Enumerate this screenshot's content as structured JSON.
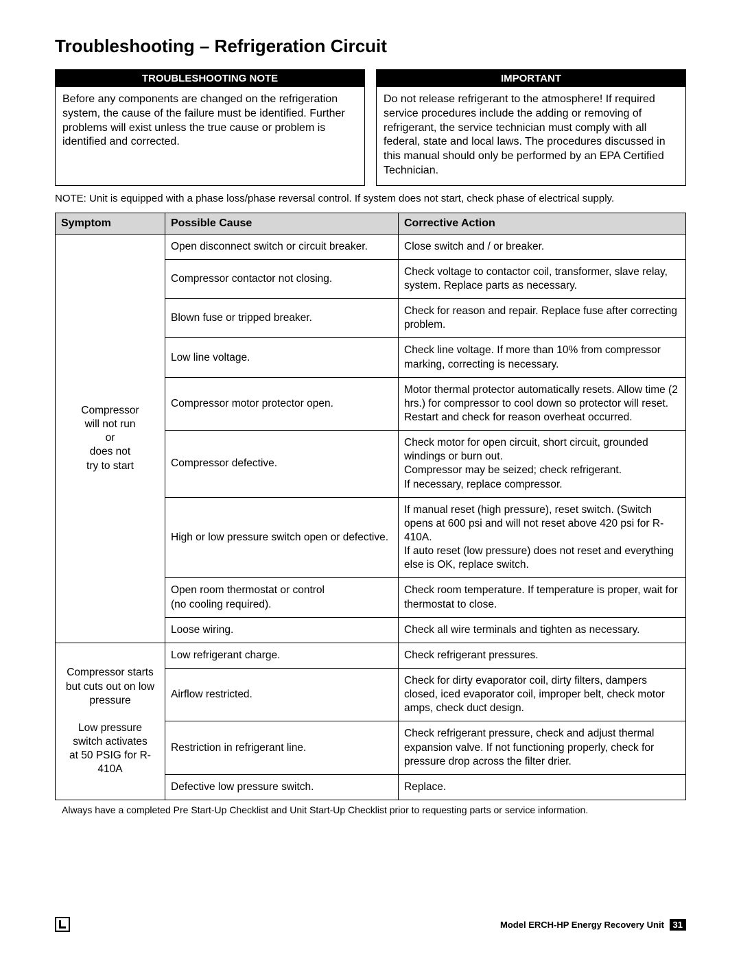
{
  "title": "Troubleshooting – Refrigeration Circuit",
  "callouts": {
    "left": {
      "header": "TROUBLESHOOTING NOTE",
      "body": "Before any components are changed on the refrigeration system, the cause of the failure must be identified. Further problems will exist unless the true cause or problem is identified and corrected."
    },
    "right": {
      "header": "IMPORTANT",
      "body": "Do not release refrigerant to the atmosphere! If required service procedures include the adding or removing of refrigerant, the service technician must comply with all federal, state and local laws. The procedures discussed in this manual should only be performed by an EPA Certified Technician."
    }
  },
  "noteLine": "NOTE: Unit is equipped with a phase loss/phase reversal control. If system does not start, check phase of electrical supply.",
  "table": {
    "headers": {
      "symptom": "Symptom",
      "cause": "Possible Cause",
      "action": "Corrective Action"
    },
    "groups": [
      {
        "symptom": "Compressor\nwill not run\nor\ndoes not\ntry to start",
        "rows": [
          {
            "cause": "Open disconnect switch or circuit breaker.",
            "action": "Close switch and / or breaker."
          },
          {
            "cause": "Compressor contactor not closing.",
            "action": "Check voltage to contactor coil, transformer, slave relay, system. Replace parts as necessary."
          },
          {
            "cause": "Blown fuse or tripped breaker.",
            "action": "Check for reason and repair. Replace fuse after correcting problem."
          },
          {
            "cause": "Low line voltage.",
            "action": "Check line voltage. If more than 10% from compressor marking, correcting is necessary."
          },
          {
            "cause": "Compressor motor protector open.",
            "action": "Motor thermal protector automatically resets. Allow time (2 hrs.) for compressor to cool down so protector will reset. Restart and check for reason overheat occurred."
          },
          {
            "cause": "Compressor defective.",
            "action": "Check motor for open circuit, short circuit, grounded windings or burn out.\nCompressor may be seized; check refrigerant.\nIf necessary, replace compressor."
          },
          {
            "cause": "High or low pressure switch open or defective.",
            "action": "If manual reset (high pressure), reset switch. (Switch opens at 600 psi and will not reset above 420 psi for R-410A.\nIf auto reset (low pressure) does not reset and everything else is OK, replace switch."
          },
          {
            "cause": "Open room thermostat or control\n(no cooling required).",
            "action": "Check room temperature. If temperature is proper, wait for thermostat to close."
          },
          {
            "cause": "Loose wiring.",
            "action": "Check all wire terminals and tighten as necessary."
          }
        ]
      },
      {
        "symptom": "Compressor starts\nbut cuts out on low\npressure\n\nLow pressure\nswitch activates\nat 50 PSIG for R-410A",
        "rows": [
          {
            "cause": "Low refrigerant charge.",
            "action": "Check refrigerant pressures."
          },
          {
            "cause": "Airflow restricted.",
            "action": "Check for dirty evaporator coil, dirty filters, dampers closed, iced evaporator coil, improper belt, check motor amps, check duct design."
          },
          {
            "cause": "Restriction in refrigerant line.",
            "action": "Check refrigerant pressure, check and adjust thermal expansion valve. If not functioning properly, check for pressure drop across the filter drier."
          },
          {
            "cause": "Defective low pressure switch.",
            "action": "Replace."
          }
        ]
      }
    ]
  },
  "footnote": "Always have a completed Pre Start-Up Checklist and Unit Start-Up Checklist prior to requesting parts or service information.",
  "footer": {
    "modelPrefix": "Model ERCH-HP Energy Recovery Unit",
    "pageNum": "31"
  },
  "style": {
    "pageWidth": 1080,
    "pageHeight": 1397,
    "colors": {
      "headerBg": "#d6d6d6",
      "calloutHeaderBg": "#000000",
      "calloutHeaderFg": "#ffffff",
      "border": "#000000",
      "text": "#000000",
      "pageNumBg": "#000000",
      "pageNumFg": "#ffffff"
    },
    "fonts": {
      "title": 26,
      "body": 16,
      "tableCell": 15.5,
      "tableHeader": 16,
      "noteLine": 15,
      "footnote": 14,
      "footer": 13
    }
  }
}
